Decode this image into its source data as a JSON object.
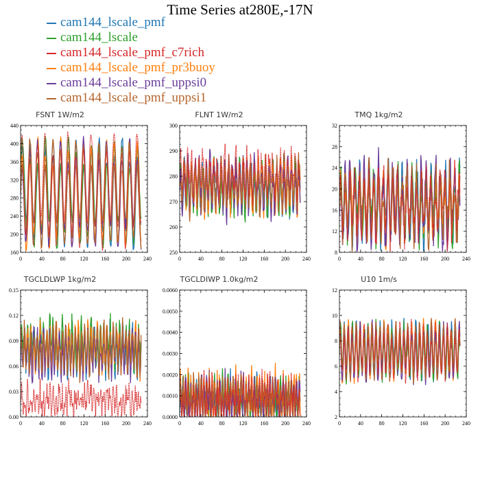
{
  "title": "Time Series at280E,-17N",
  "legend": [
    {
      "name": "cam144_lscale_pmf",
      "color": "#1f77b4"
    },
    {
      "name": "cam144_lscale",
      "color": "#2ca02c"
    },
    {
      "name": "cam144_lscale_pmf_c7rich",
      "color": "#d62728"
    },
    {
      "name": "cam144_lscale_pmf_pr3buoy",
      "color": "#ff7f0e"
    },
    {
      "name": "cam144_lscale_pmf_uppsi0",
      "color": "#6a3d9a"
    },
    {
      "name": "cam144_lscale_pmf_uppsi1",
      "color": "#b5652c"
    }
  ],
  "chart_data": [
    {
      "type": "line",
      "title": "FSNT   1W/m2",
      "xlim": [
        0,
        240
      ],
      "ylim": [
        160,
        440
      ],
      "xticks": [
        0,
        40,
        80,
        120,
        160,
        200,
        240
      ],
      "yticks": [
        160,
        200,
        240,
        280,
        320,
        360,
        400,
        440
      ],
      "x_range": [
        0,
        228
      ],
      "series_mean": [
        290,
        290,
        300,
        290,
        290,
        290
      ],
      "series_amp": [
        90,
        90,
        95,
        92,
        88,
        90
      ],
      "period": 14.5,
      "noise": 10
    },
    {
      "type": "line",
      "title": "FLNT   1W/m2",
      "xlim": [
        0,
        240
      ],
      "ylim": [
        250,
        300
      ],
      "xticks": [
        0,
        40,
        80,
        120,
        160,
        200,
        240
      ],
      "yticks": [
        250,
        260,
        270,
        280,
        290,
        300
      ],
      "x_range": [
        0,
        228
      ],
      "series_mean": [
        276,
        275,
        281,
        276,
        276,
        276
      ],
      "series_amp": [
        7,
        8,
        6,
        7,
        8,
        7
      ],
      "period": 7,
      "noise": 5
    },
    {
      "type": "line",
      "title": "TMQ   1kg/m2",
      "xlim": [
        0,
        240
      ],
      "ylim": [
        8,
        32
      ],
      "xticks": [
        0,
        40,
        80,
        120,
        160,
        200,
        240
      ],
      "yticks": [
        8,
        12,
        16,
        20,
        24,
        28,
        32
      ],
      "x_range": [
        0,
        228
      ],
      "series_mean": [
        17,
        17,
        17,
        17,
        17,
        17
      ],
      "series_amp": [
        5,
        5,
        5,
        5,
        6,
        5
      ],
      "period": 9,
      "noise": 3
    },
    {
      "type": "line",
      "title": "TGCLDLWP   1kg/m2",
      "xlim": [
        0,
        240
      ],
      "ylim": [
        0,
        0.15
      ],
      "xticks": [
        0,
        40,
        80,
        120,
        160,
        200,
        240
      ],
      "yticks": [
        0.0,
        0.03,
        0.06,
        0.09,
        0.12,
        0.15
      ],
      "ytick_labels": [
        "0.00",
        "0.03",
        "0.06",
        "0.09",
        "0.12",
        "0.15"
      ],
      "x_range": [
        0,
        228
      ],
      "series_mean": [
        0.08,
        0.085,
        0.02,
        0.08,
        0.075,
        0.08
      ],
      "series_amp": [
        0.02,
        0.02,
        0.01,
        0.02,
        0.02,
        0.02
      ],
      "period": 6,
      "noise": 0.015
    },
    {
      "type": "line",
      "title": "TGCLDIWP   1.0kg/m2",
      "xlim": [
        0,
        240
      ],
      "ylim": [
        0,
        0.006
      ],
      "xticks": [
        0,
        40,
        80,
        120,
        160,
        200,
        240
      ],
      "yticks": [
        0,
        0.001,
        0.002,
        0.003,
        0.004,
        0.005,
        0.006
      ],
      "ytick_labels": [
        "0.0000",
        "0.0010",
        "0.0020",
        "0.0030",
        "0.0040",
        "0.0050",
        "0.0060"
      ],
      "x_range": [
        0,
        228
      ],
      "series_mean": [
        0.0008,
        0.0008,
        0.0008,
        0.0009,
        0.0008,
        0.0008
      ],
      "series_amp": [
        0.0006,
        0.0006,
        0.0006,
        0.0007,
        0.0006,
        0.0006
      ],
      "period": 5,
      "noise": 0.0008
    },
    {
      "type": "line",
      "title": "U10   1m/s",
      "xlim": [
        0,
        240
      ],
      "ylim": [
        2,
        12
      ],
      "xticks": [
        0,
        40,
        80,
        120,
        160,
        200,
        240
      ],
      "yticks": [
        2,
        4,
        6,
        8,
        10,
        12
      ],
      "x_range": [
        0,
        228
      ],
      "series_mean": [
        7.2,
        7.2,
        7.2,
        7.2,
        7.0,
        7.2
      ],
      "series_amp": [
        1.6,
        1.6,
        1.6,
        1.6,
        1.7,
        1.6
      ],
      "period": 7.5,
      "noise": 0.6
    }
  ]
}
